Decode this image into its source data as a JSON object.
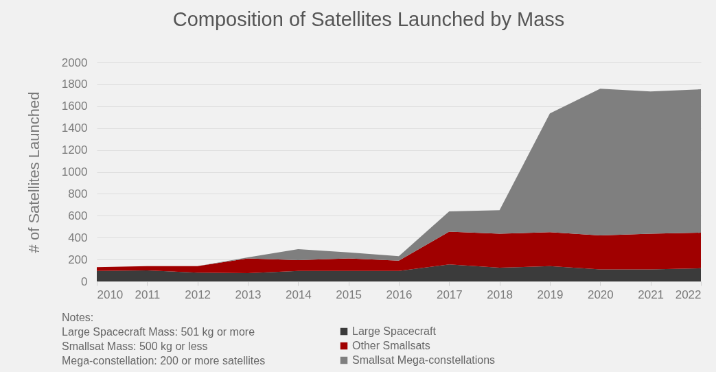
{
  "chart_data": {
    "type": "area",
    "title": "Composition of Satellites Launched by Mass",
    "ylabel": "# of Satellites Launched",
    "x": [
      2010,
      2011,
      2012,
      2013,
      2014,
      2015,
      2016,
      2017,
      2018,
      2019,
      2020,
      2021,
      2022
    ],
    "xlim": [
      2010,
      2022
    ],
    "xticks": [
      2010,
      2011,
      2012,
      2013,
      2014,
      2015,
      2016,
      2017,
      2018,
      2019,
      2020,
      2021,
      2022
    ],
    "ylim": [
      0,
      2000
    ],
    "yticks": [
      0,
      200,
      400,
      600,
      800,
      1000,
      1200,
      1400,
      1600,
      1800,
      2000
    ],
    "stacked": true,
    "grid": "y",
    "legend": "bottom",
    "series": [
      {
        "name": "Large Spacecraft",
        "color": "#3b3b3b",
        "values": [
          95,
          100,
          80,
          75,
          95,
          95,
          95,
          155,
          125,
          140,
          110,
          110,
          120
        ]
      },
      {
        "name": "Other Smallsats",
        "color": "#a00000",
        "values": [
          35,
          40,
          60,
          135,
          100,
          115,
          95,
          300,
          310,
          310,
          310,
          325,
          325
        ]
      },
      {
        "name": "Smallsat Mega-constellations",
        "color": "#7f7f7f",
        "values": [
          0,
          0,
          0,
          10,
          100,
          55,
          40,
          185,
          215,
          1085,
          1340,
          1300,
          1310
        ]
      }
    ],
    "annotations": [
      "Notes:",
      "Large Spacecraft Mass: 501 kg or more",
      "Smallsat Mass: 500 kg or less",
      "Mega-constellation: 200 or more satellites"
    ]
  }
}
